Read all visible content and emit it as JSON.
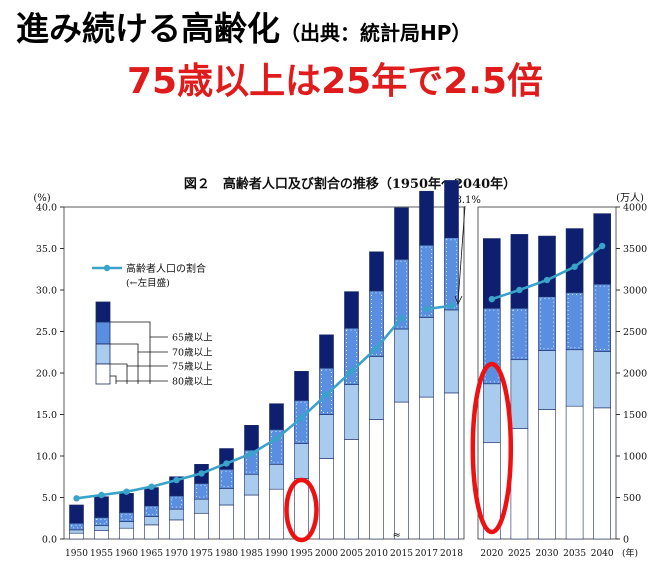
{
  "headline": {
    "title": "進み続ける高齢化",
    "source": "（出典：統計局HP）",
    "subtitle": "75歳以上は25年で2.5倍"
  },
  "chart_data": {
    "type": "bar",
    "title": "図２　高齢者人口及び割合の推移（1950年～2040年）",
    "ylabel_left": "(%)",
    "ylabel_right": "(万人)",
    "xlabel_unit": "(年)",
    "ylim_left": [
      0,
      40
    ],
    "ylim_right": [
      0,
      4000
    ],
    "left_ticks": [
      "0.0",
      "5.0",
      "10.0",
      "15.0",
      "20.0",
      "25.0",
      "30.0",
      "35.0",
      "40.0"
    ],
    "right_ticks": [
      "0",
      "500",
      "1000",
      "1500",
      "2000",
      "2500",
      "3000",
      "3500",
      "4000"
    ],
    "panel1_categories": [
      "1950",
      "1955",
      "1960",
      "1965",
      "1970",
      "1975",
      "1980",
      "1985",
      "1990",
      "1995",
      "2000",
      "2005",
      "2010",
      "2015",
      "2017",
      "2018"
    ],
    "panel2_categories": [
      "2020",
      "2025",
      "2030",
      "2035",
      "2040"
    ],
    "series": [
      {
        "name": "80歳以上",
        "color": "#ffffff",
        "panel1": [
          70,
          100,
          130,
          170,
          230,
          310,
          410,
          530,
          600,
          730,
          970,
          1200,
          1440,
          1650,
          1710,
          1760
        ],
        "panel2": [
          1160,
          1330,
          1560,
          1600,
          1580
        ]
      },
      {
        "name": "75歳以上",
        "color": "#a8cbee",
        "panel1": [
          40,
          60,
          80,
          100,
          130,
          170,
          200,
          250,
          300,
          420,
          530,
          660,
          760,
          880,
          960,
          1000
        ],
        "panel2": [
          710,
          830,
          710,
          680,
          680
        ]
      },
      {
        "name": "70歳以上",
        "color": "#5a8ee0",
        "panel1": [
          80,
          100,
          110,
          130,
          160,
          190,
          230,
          290,
          420,
          520,
          560,
          680,
          790,
          840,
          870,
          870
        ],
        "panel2": [
          910,
          620,
          650,
          690,
          810
        ]
      },
      {
        "name": "65歳以上",
        "color": "#0d1f6e",
        "panel1": [
          220,
          250,
          230,
          220,
          230,
          230,
          250,
          300,
          310,
          350,
          400,
          440,
          470,
          620,
          650,
          690
        ],
        "panel2": [
          840,
          890,
          730,
          770,
          850
        ]
      }
    ],
    "ratio_series": {
      "name": "高齢者人口の割合",
      "note": "(←左目盛)",
      "panel1": [
        4.9,
        5.3,
        5.7,
        6.3,
        7.1,
        7.9,
        9.1,
        10.3,
        12.1,
        14.6,
        17.4,
        20.2,
        23.0,
        26.6,
        27.7,
        28.1
      ],
      "panel2": [
        28.9,
        30.0,
        31.2,
        32.8,
        35.3
      ]
    },
    "annotation": "28.1%",
    "legend_entries": [
      "65歳以上",
      "70歳以上",
      "75歳以上",
      "80歳以上"
    ],
    "highlight_years": [
      "1995",
      "2020"
    ],
    "colors": {
      "ratio_line": "#3aa3c9",
      "highlight": "#ee1111"
    }
  }
}
